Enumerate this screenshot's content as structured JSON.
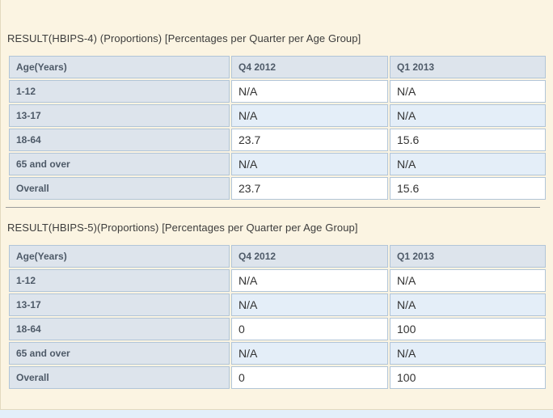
{
  "colors": {
    "panel_bg": "#fbf4e2",
    "page_bg": "#e3effa",
    "cell_header_bg": "#dde4ec",
    "cell_alt_bg": "#e4eef8",
    "cell_border": "#b1c5d8",
    "divider": "#9b9b9b",
    "title_text": "#3c3c3c",
    "header_text": "#4e5a68",
    "value_text": "#333333"
  },
  "sections": [
    {
      "title": "RESULT(HBIPS-4) (Proportions) [Percentages per Quarter per Age Group]",
      "table": {
        "columns": [
          "Age(Years)",
          "Q4 2012",
          "Q1 2013"
        ],
        "rows": [
          {
            "label": "1-12",
            "values": [
              "N/A",
              "N/A"
            ]
          },
          {
            "label": "13-17",
            "values": [
              "N/A",
              "N/A"
            ]
          },
          {
            "label": "18-64",
            "values": [
              "23.7",
              "15.6"
            ]
          },
          {
            "label": "65 and over",
            "values": [
              "N/A",
              "N/A"
            ]
          },
          {
            "label": "Overall",
            "values": [
              "23.7",
              "15.6"
            ]
          }
        ]
      }
    },
    {
      "title": "RESULT(HBIPS-5)(Proportions) [Percentages per Quarter per Age Group]",
      "table": {
        "columns": [
          "Age(Years)",
          "Q4 2012",
          "Q1 2013"
        ],
        "rows": [
          {
            "label": "1-12",
            "values": [
              "N/A",
              "N/A"
            ]
          },
          {
            "label": "13-17",
            "values": [
              "N/A",
              "N/A"
            ]
          },
          {
            "label": "18-64",
            "values": [
              "0",
              "100"
            ]
          },
          {
            "label": "65 and over",
            "values": [
              "N/A",
              "N/A"
            ]
          },
          {
            "label": "Overall",
            "values": [
              "0",
              "100"
            ]
          }
        ]
      }
    }
  ]
}
